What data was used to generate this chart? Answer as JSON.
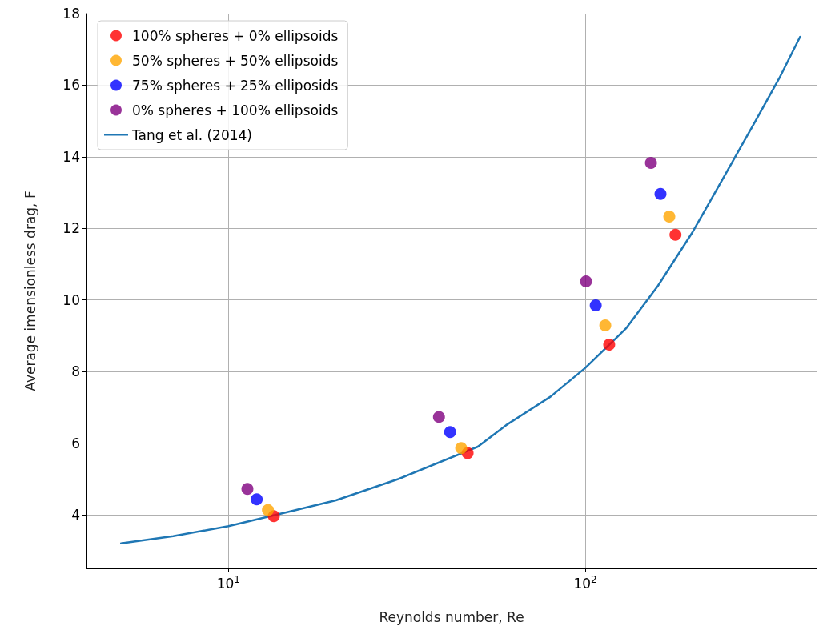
{
  "chart_data": {
    "type": "scatter",
    "xlabel": "Reynolds number, Re",
    "ylabel": "Average imensionless drag, F",
    "log": "x",
    "xlim": [
      4,
      445
    ],
    "ylim": [
      2.5,
      18
    ],
    "xticks": [
      {
        "value": 10,
        "label": "10$^{1}$"
      },
      {
        "value": 100,
        "label": "10$^{2}$"
      }
    ],
    "yticks": [
      4,
      6,
      8,
      10,
      12,
      14,
      16,
      18
    ],
    "grid": true,
    "legend": "top left",
    "marker": "circle",
    "series": [
      {
        "name": "100% spheres + 0% ellipsoids",
        "color": "#ff0000",
        "x": [
          13.4,
          46.8,
          116.7,
          179
        ],
        "values": [
          3.96,
          5.72,
          8.75,
          11.82
        ]
      },
      {
        "name": "50% spheres + 50% ellipsoids",
        "color": "#ffa500",
        "x": [
          12.9,
          44.9,
          113.8,
          172
        ],
        "values": [
          4.13,
          5.86,
          9.29,
          12.33
        ]
      },
      {
        "name": "75% spheres + 25% elliposids",
        "color": "#0000ff",
        "x": [
          12.0,
          41.8,
          107,
          162.5
        ],
        "values": [
          4.43,
          6.31,
          9.85,
          12.96
        ]
      },
      {
        "name": "0% spheres + 100% ellipsoids",
        "color": "#800080",
        "x": [
          11.3,
          38.9,
          100.5,
          152.8
        ],
        "values": [
          4.72,
          6.73,
          10.52,
          13.83
        ]
      },
      {
        "name": "Tang et al. (2014)",
        "type": "line",
        "color": "#1f77b4",
        "line_style": "solid",
        "marker": "none",
        "x": [
          5,
          7,
          10,
          15,
          20,
          30,
          50,
          60,
          80,
          100,
          130,
          160,
          200,
          250,
          300,
          350,
          400
        ],
        "values": [
          3.2,
          3.4,
          3.68,
          4.1,
          4.4,
          5.0,
          5.9,
          6.5,
          7.3,
          8.1,
          9.2,
          10.4,
          11.9,
          13.6,
          15.0,
          16.2,
          17.35
        ]
      }
    ]
  }
}
